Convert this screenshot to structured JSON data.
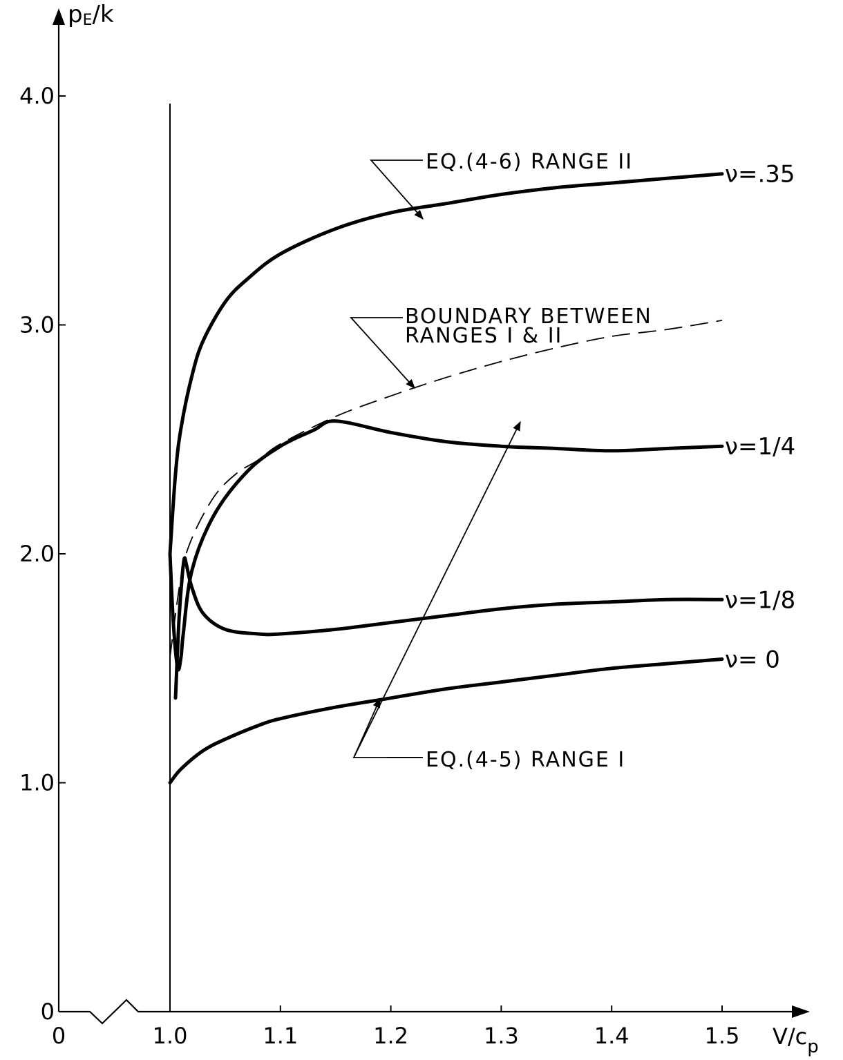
{
  "chart_data": {
    "type": "line",
    "title": "",
    "xlabel": "V/c",
    "xlabel_sub": "p",
    "ylabel_main": "p",
    "ylabel_sub": "E",
    "ylabel_tail": "/k",
    "xlim": [
      0,
      1.5
    ],
    "ylim": [
      0,
      4.0
    ],
    "x_axis_break": true,
    "x_ticks": [
      {
        "value": 0,
        "label": "0"
      },
      {
        "value": 1.0,
        "label": "1.0"
      },
      {
        "value": 1.1,
        "label": "1.1"
      },
      {
        "value": 1.2,
        "label": "1.2"
      },
      {
        "value": 1.3,
        "label": "1.3"
      },
      {
        "value": 1.4,
        "label": "1.4"
      },
      {
        "value": 1.5,
        "label": "1.5"
      }
    ],
    "y_ticks": [
      {
        "value": 0,
        "label": "0"
      },
      {
        "value": 1.0,
        "label": "1.0"
      },
      {
        "value": 2.0,
        "label": "2.0"
      },
      {
        "value": 3.0,
        "label": "3.0"
      },
      {
        "value": 4.0,
        "label": "4.0"
      }
    ],
    "grid": false,
    "series": [
      {
        "name": "ν=.35",
        "style": "solid",
        "x": [
          1.0,
          1.005,
          1.01,
          1.02,
          1.03,
          1.05,
          1.07,
          1.1,
          1.15,
          1.2,
          1.25,
          1.3,
          1.35,
          1.4,
          1.45,
          1.5
        ],
        "y": [
          2.0,
          2.35,
          2.55,
          2.78,
          2.93,
          3.1,
          3.2,
          3.31,
          3.42,
          3.49,
          3.53,
          3.57,
          3.6,
          3.62,
          3.64,
          3.66
        ]
      },
      {
        "name": "ν=1/4",
        "style": "solid",
        "x": [
          1.0,
          1.003,
          1.007,
          1.01,
          1.012,
          1.02,
          1.04,
          1.07,
          1.1,
          1.13,
          1.15,
          1.2,
          1.25,
          1.3,
          1.35,
          1.4,
          1.45,
          1.5
        ],
        "y": [
          2.0,
          1.7,
          1.5,
          1.55,
          1.65,
          1.93,
          2.17,
          2.36,
          2.47,
          2.54,
          2.58,
          2.53,
          2.49,
          2.47,
          2.46,
          2.45,
          2.46,
          2.47
        ]
      },
      {
        "name": "ν=1/8",
        "style": "solid",
        "x": [
          1.005,
          1.008,
          1.011,
          1.013,
          1.015,
          1.02,
          1.03,
          1.05,
          1.08,
          1.1,
          1.15,
          1.2,
          1.25,
          1.3,
          1.35,
          1.4,
          1.45,
          1.5
        ],
        "y": [
          1.37,
          1.7,
          1.9,
          1.98,
          1.95,
          1.85,
          1.74,
          1.67,
          1.65,
          1.65,
          1.67,
          1.7,
          1.73,
          1.76,
          1.78,
          1.79,
          1.8,
          1.8
        ]
      },
      {
        "name": "ν= 0",
        "style": "solid",
        "x": [
          1.0,
          1.01,
          1.03,
          1.05,
          1.08,
          1.1,
          1.15,
          1.2,
          1.25,
          1.3,
          1.35,
          1.4,
          1.45,
          1.5
        ],
        "y": [
          1.0,
          1.06,
          1.14,
          1.19,
          1.25,
          1.28,
          1.33,
          1.37,
          1.41,
          1.44,
          1.47,
          1.5,
          1.52,
          1.54
        ]
      },
      {
        "name": "",
        "style": "dashed",
        "x": [
          1.0,
          1.01,
          1.02,
          1.04,
          1.06,
          1.08,
          1.1,
          1.15,
          1.2,
          1.25,
          1.3,
          1.35,
          1.4,
          1.45,
          1.5
        ],
        "y": [
          1.55,
          1.9,
          2.07,
          2.25,
          2.35,
          2.41,
          2.48,
          2.6,
          2.69,
          2.77,
          2.84,
          2.9,
          2.95,
          2.98,
          3.02
        ]
      }
    ],
    "annotations": [
      {
        "id": "eq46",
        "text": "EQ.(4-6) RANGE  II"
      },
      {
        "id": "boundary1",
        "text": "BOUNDARY BETWEEN"
      },
      {
        "id": "boundary2",
        "text": "RANGES I & II"
      },
      {
        "id": "eq45",
        "text": "EQ.(4-5) RANGE  I"
      }
    ]
  }
}
